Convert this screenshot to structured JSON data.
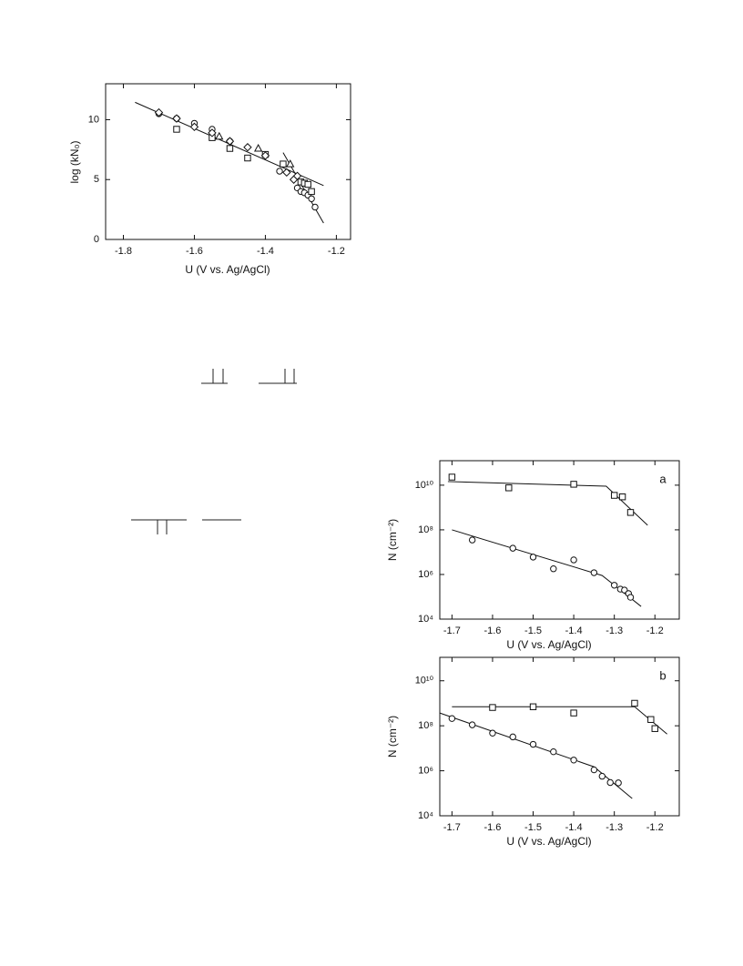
{
  "chart_data": [
    {
      "type": "scatter",
      "log_y": false,
      "xlabel": "U  (V vs. Ag/AgCl)",
      "ylabel": "log (kN₀)",
      "xlim": [
        -1.85,
        -1.16
      ],
      "ylim": [
        0,
        13
      ],
      "xticks": [
        -1.8,
        -1.6,
        -1.4,
        -1.2
      ],
      "yticks": [
        0,
        5,
        10
      ],
      "series": [
        {
          "marker": "circle",
          "x": [
            -1.7,
            -1.65,
            -1.6,
            -1.55,
            -1.5,
            -1.36,
            -1.31,
            -1.3,
            -1.29,
            -1.28,
            -1.27,
            -1.26
          ],
          "values": [
            10.5,
            10.1,
            9.7,
            9.2,
            8.2,
            5.7,
            4.3,
            4.0,
            3.9,
            3.7,
            3.4,
            2.7
          ]
        },
        {
          "marker": "square",
          "x": [
            -1.65,
            -1.55,
            -1.5,
            -1.45,
            -1.4,
            -1.35,
            -1.3,
            -1.29,
            -1.28,
            -1.27
          ],
          "values": [
            9.2,
            8.5,
            7.6,
            6.8,
            7.1,
            6.3,
            4.8,
            4.7,
            4.6,
            4.0
          ]
        },
        {
          "marker": "diamond",
          "x": [
            -1.7,
            -1.65,
            -1.6,
            -1.55,
            -1.5,
            -1.45,
            -1.4,
            -1.34,
            -1.32,
            -1.31
          ],
          "values": [
            10.6,
            10.1,
            9.4,
            8.9,
            8.2,
            7.7,
            7.0,
            5.6,
            5.0,
            5.3
          ]
        },
        {
          "marker": "triangle",
          "x": [
            -1.53,
            -1.42,
            -1.33
          ],
          "values": [
            8.6,
            7.6,
            6.3
          ]
        }
      ],
      "fit_lines": [
        {
          "x": [
            -1.767,
            -1.236
          ],
          "values": [
            11.45,
            4.5
          ]
        },
        {
          "x": [
            -1.35,
            -1.236
          ],
          "values": [
            7.25,
            1.37
          ]
        }
      ]
    },
    {
      "type": "scatter",
      "log_y": true,
      "panel_label": "a",
      "xlabel": "U  (V vs. Ag/AgCl)",
      "ylabel": "N (cm⁻²)",
      "xlim": [
        -1.73,
        -1.14
      ],
      "ylim": [
        10000,
        125000000000
      ],
      "xticks": [
        -1.7,
        -1.6,
        -1.5,
        -1.4,
        -1.3,
        -1.2
      ],
      "yticks": [
        {
          "value": 10000,
          "label": "10⁴"
        },
        {
          "value": 1000000,
          "label": "10⁶"
        },
        {
          "value": 100000000,
          "label": "10⁸"
        },
        {
          "value": 10000000000,
          "label": "10¹⁰"
        }
      ],
      "series": [
        {
          "marker": "square",
          "x": [
            -1.7,
            -1.56,
            -1.4,
            -1.3,
            -1.28,
            -1.26
          ],
          "values": [
            23000000000,
            7600000000,
            11000000000,
            3500000000,
            3000000000,
            600000000
          ]
        },
        {
          "marker": "circle",
          "x": [
            -1.65,
            -1.55,
            -1.5,
            -1.45,
            -1.4,
            -1.35,
            -1.3,
            -1.285,
            -1.275,
            -1.265,
            -1.26
          ],
          "values": [
            35000000,
            15000000,
            6000000,
            1800000,
            4500000,
            1200000,
            330000,
            220000,
            200000,
            140000,
            95000
          ]
        }
      ],
      "fit_lines": [
        {
          "x": [
            -1.71,
            -1.32,
            -1.218
          ],
          "values": [
            14500000000,
            9000000000,
            160000000
          ]
        },
        {
          "x": [
            -1.7,
            -1.33,
            -1.234
          ],
          "values": [
            100000000,
            900000,
            37000
          ]
        }
      ]
    },
    {
      "type": "scatter",
      "log_y": true,
      "panel_label": "b",
      "xlabel": "U  (V vs. Ag/AgCl)",
      "ylabel": "N (cm⁻²)",
      "xlim": [
        -1.73,
        -1.14
      ],
      "ylim": [
        10000,
        110000000000
      ],
      "xticks": [
        -1.7,
        -1.6,
        -1.5,
        -1.4,
        -1.3,
        -1.2
      ],
      "yticks": [
        {
          "value": 10000,
          "label": "10⁴"
        },
        {
          "value": 1000000,
          "label": "10⁶"
        },
        {
          "value": 100000000,
          "label": "10⁸"
        },
        {
          "value": 10000000000,
          "label": "10¹⁰"
        }
      ],
      "series": [
        {
          "marker": "square",
          "x": [
            -1.6,
            -1.5,
            -1.4,
            -1.25,
            -1.21,
            -1.2
          ],
          "values": [
            650000000,
            700000000,
            370000000,
            1000000000,
            190000000,
            75000000
          ]
        },
        {
          "marker": "circle",
          "x": [
            -1.7,
            -1.65,
            -1.6,
            -1.55,
            -1.5,
            -1.45,
            -1.4,
            -1.35,
            -1.33,
            -1.31,
            -1.29
          ],
          "values": [
            210000000,
            110000000,
            47000000,
            32000000,
            15000000,
            7000000,
            3000000,
            1100000,
            570000,
            300000,
            290000
          ]
        }
      ],
      "fit_lines": [
        {
          "x": [
            -1.7,
            -1.25,
            -1.17
          ],
          "values": [
            700000000,
            700000000,
            43000000
          ]
        },
        {
          "x": [
            -1.73,
            -1.35,
            -1.256
          ],
          "values": [
            370000000,
            1500000,
            59000
          ]
        }
      ]
    }
  ]
}
